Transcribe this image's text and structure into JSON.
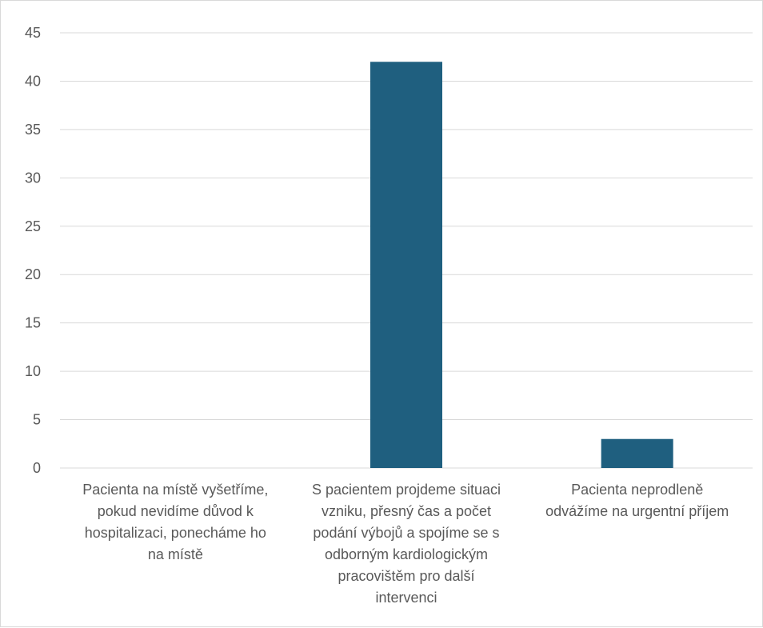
{
  "chart_data": {
    "type": "bar",
    "title": "",
    "xlabel": "",
    "ylabel": "",
    "categories": [
      "Pacienta na místě vyšetříme, pokud nevidíme důvod k hospitalizaci, ponecháme ho na místě",
      "S pacientem projdeme situaci vzniku, přesný čas a počet podání výbojů a spojíme se s odborným kardiologickým pracovištěm pro další intervenci",
      "Pacienta neprodleně odvážíme na urgentní příjem"
    ],
    "category_lines": [
      [
        "Pacienta na místě vyšetříme,",
        "pokud nevidíme důvod k",
        "hospitalizaci, ponecháme ho",
        "na místě"
      ],
      [
        "S pacientem projdeme situaci",
        "vzniku, přesný čas a počet",
        "podání výbojů a spojíme se s",
        "odborným kardiologickým",
        "pracovištěm pro další",
        "intervenci"
      ],
      [
        "Pacienta neprodleně",
        "odvážíme na urgentní příjem"
      ]
    ],
    "values": [
      0,
      42,
      3
    ],
    "ylim": [
      0,
      45
    ],
    "yticks": [
      0,
      5,
      10,
      15,
      20,
      25,
      30,
      35,
      40,
      45
    ],
    "grid": true,
    "legend": "none",
    "colors": {
      "bar": "#1f5f7f",
      "grid": "#d9d9d9",
      "text": "#595959"
    }
  }
}
